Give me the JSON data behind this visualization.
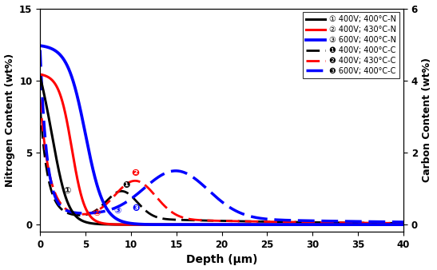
{
  "xlabel": "Depth (μm)",
  "ylabel_left": "Nitrogen Content (wt%)",
  "ylabel_right": "Carbon Content (wt%)",
  "xlim": [
    0,
    40
  ],
  "ylim_left": [
    -0.5,
    15
  ],
  "ylim_right": [
    -0.2,
    6
  ],
  "xticks": [
    0,
    5,
    10,
    15,
    20,
    25,
    30,
    35,
    40
  ],
  "yticks_left": [
    0,
    5,
    10,
    15
  ],
  "yticks_right": [
    0,
    2,
    4,
    6
  ],
  "colors": {
    "c1": "#000000",
    "c2": "#ff0000",
    "c3": "#0000ff"
  },
  "legend_entries_N": [
    "① 400V; 400°C-N",
    "② 400V; 430°C-N",
    "③ 600V; 400°C-N"
  ],
  "legend_entries_C": [
    "❶ 400V; 400°C-C",
    "❷ 400V; 430°C-C",
    "❸ 600V; 400°C-C"
  ],
  "figsize": [
    5.47,
    3.38
  ],
  "dpi": 100,
  "lw_solid": 2.2,
  "lw_dashed": 2.0
}
